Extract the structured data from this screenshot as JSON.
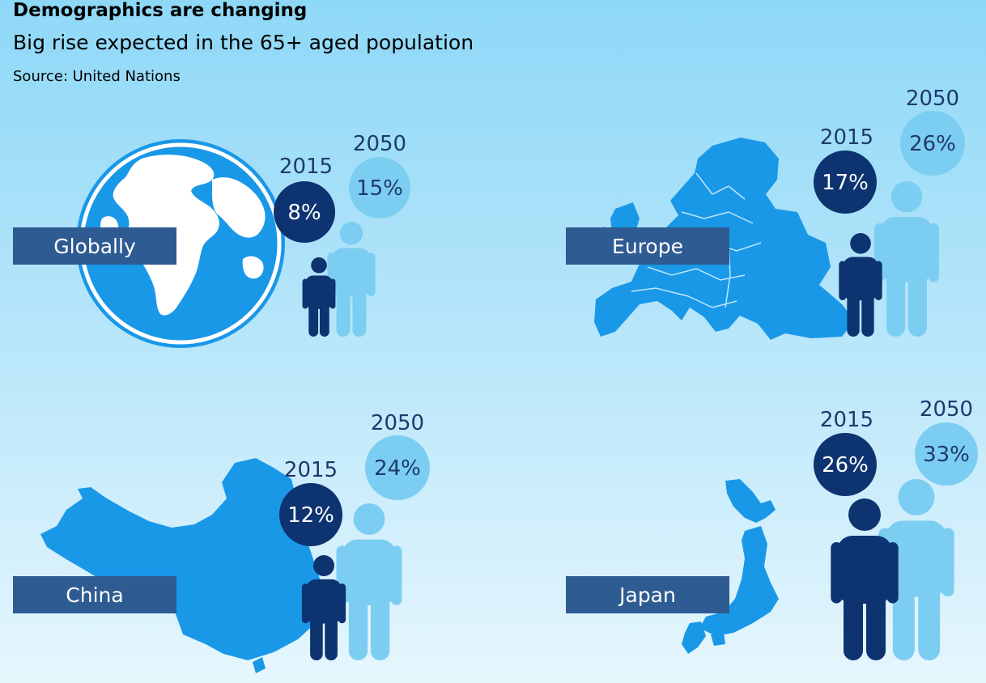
{
  "title": "Demographics are changing",
  "subtitle": "Big rise expected in the 65+ aged population",
  "source": "Source: United Nations",
  "colors": {
    "dark_circle": "#0d3370",
    "light_circle": "#7ccdf2",
    "dark_person": "#0d3370",
    "light_person": "#7ccdf2",
    "map": "#1a98e8",
    "label_box": "#2e5b92"
  },
  "chart_data": [
    {
      "type": "bar",
      "region": "Globally",
      "categories": [
        "2015",
        "2050"
      ],
      "values": [
        8,
        15
      ],
      "labels": [
        "8%",
        "15%"
      ],
      "unit": "%"
    },
    {
      "type": "bar",
      "region": "Europe",
      "categories": [
        "2015",
        "2050"
      ],
      "values": [
        17,
        26
      ],
      "labels": [
        "17%",
        "26%"
      ],
      "unit": "%"
    },
    {
      "type": "bar",
      "region": "China",
      "categories": [
        "2015",
        "2050"
      ],
      "values": [
        12,
        24
      ],
      "labels": [
        "12%",
        "24%"
      ],
      "unit": "%"
    },
    {
      "type": "bar",
      "region": "Japan",
      "categories": [
        "2015",
        "2050"
      ],
      "values": [
        26,
        33
      ],
      "labels": [
        "26%",
        "33%"
      ],
      "unit": "%"
    }
  ]
}
